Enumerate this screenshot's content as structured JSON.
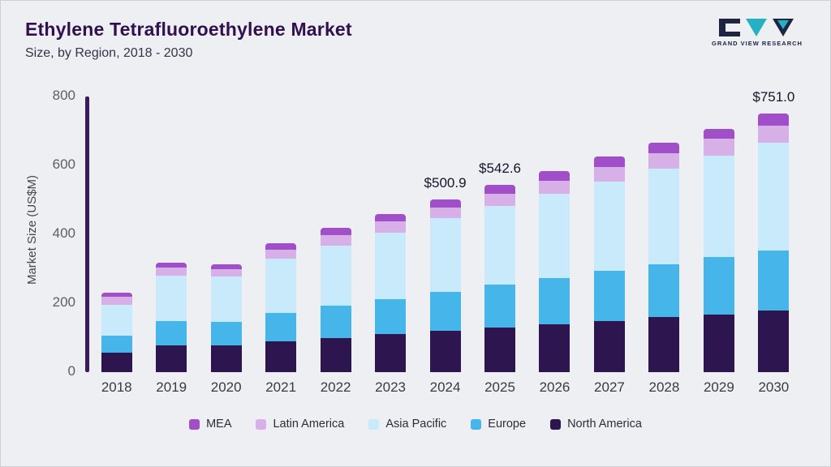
{
  "header": {
    "title": "Ethylene Tetrafluoroethylene Market",
    "subtitle": "Size, by Region, 2018 - 2030"
  },
  "logo": {
    "text": "GRAND VIEW RESEARCH",
    "navy": "#1c2440",
    "teal": "#25b0c5"
  },
  "chart_data": {
    "type": "bar",
    "stacked": true,
    "title": "Ethylene Tetrafluoroethylene Market",
    "subtitle": "Size, by Region, 2018 - 2030",
    "ylabel": "Market Size (US$M)",
    "ylim": [
      0,
      800
    ],
    "yticks": [
      0,
      200,
      400,
      600,
      800
    ],
    "grid": false,
    "legend_position": "bottom",
    "legend_order": [
      "MEA",
      "Latin America",
      "Asia Pacific",
      "Europe",
      "North America"
    ],
    "categories": [
      "2018",
      "2019",
      "2020",
      "2021",
      "2022",
      "2023",
      "2024",
      "2025",
      "2026",
      "2027",
      "2028",
      "2029",
      "2030"
    ],
    "series": [
      {
        "name": "North America",
        "color": "#2d1650",
        "values": [
          57,
          78,
          78,
          90,
          100,
          110,
          120,
          130,
          140,
          149,
          159,
          168,
          179
        ]
      },
      {
        "name": "Europe",
        "color": "#45b5ea",
        "values": [
          50,
          70,
          67,
          82,
          92,
          102,
          112,
          123,
          132,
          145,
          154,
          167,
          175
        ]
      },
      {
        "name": "Asia Pacific",
        "color": "#c8eafa",
        "values": [
          88,
          132,
          133,
          158,
          175,
          193,
          215,
          230,
          246,
          260,
          278,
          293,
          311
        ]
      },
      {
        "name": "Latin America",
        "color": "#d7b0e8",
        "values": [
          23,
          23,
          20,
          25,
          31,
          32,
          31,
          34,
          37,
          41,
          44,
          49,
          51
        ]
      },
      {
        "name": "MEA",
        "color": "#a14fc8",
        "values": [
          12,
          15,
          15,
          20,
          20,
          21,
          22.9,
          25.6,
          28,
          30,
          30,
          30,
          35
        ]
      }
    ],
    "annotations": [
      {
        "category": "2024",
        "text": "$500.9"
      },
      {
        "category": "2025",
        "text": "$542.6"
      },
      {
        "category": "2030",
        "text": "$751.0"
      }
    ]
  }
}
